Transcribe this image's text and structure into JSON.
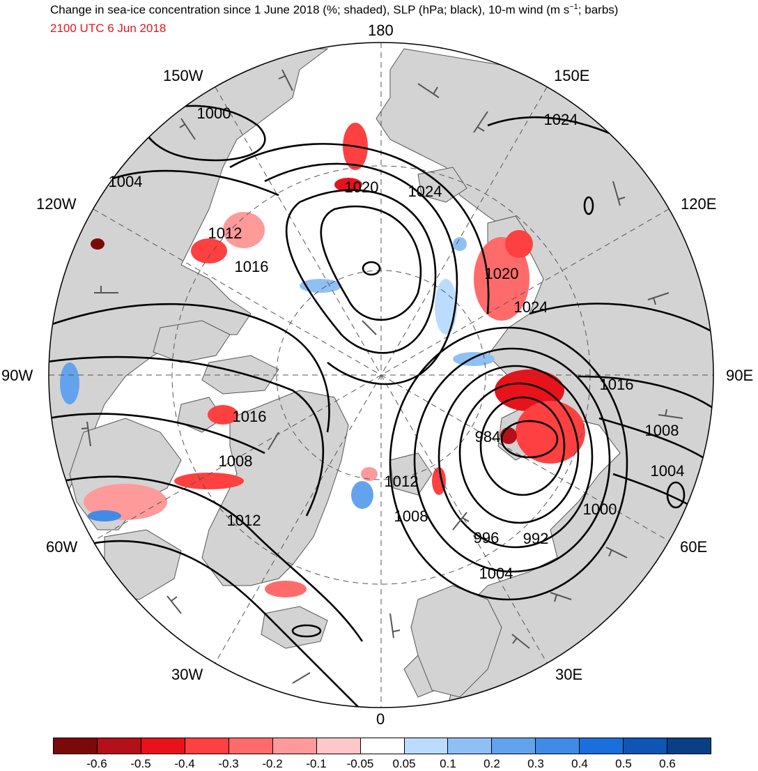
{
  "title": "Change in sea-ice concentration since 1 June 2018 (%; shaded), SLP (hPa; black), 10-m wind (m s",
  "title_superscript": "−1",
  "title_suffix": "; barbs)",
  "valid_time": "2100 UTC 6 Jun 2018",
  "longitude_labels": {
    "top": "180",
    "bottom": "0",
    "left": "90W",
    "right": "90E",
    "lon150w": "150W",
    "lon150e": "150E",
    "lon120w": "120W",
    "lon120e": "120E",
    "lon60w": "60W",
    "lon60e": "60E",
    "lon30w": "30W",
    "lon30e": "30E"
  },
  "slp_contour_labels": [
    {
      "id": "isobar-1000-nw",
      "text": "1000"
    },
    {
      "id": "isobar-1004-nw",
      "text": "1004"
    },
    {
      "id": "isobar-1012-nw",
      "text": "1012"
    },
    {
      "id": "isobar-1016-nw",
      "text": "1016"
    },
    {
      "id": "isobar-1020-c",
      "text": "1020"
    },
    {
      "id": "isobar-1024-c",
      "text": "1024"
    },
    {
      "id": "isobar-1024-ne",
      "text": "1024"
    },
    {
      "id": "isobar-1020-e",
      "text": "1020"
    },
    {
      "id": "isobar-1024-e",
      "text": "1024"
    },
    {
      "id": "isobar-1016-e",
      "text": "1016"
    },
    {
      "id": "isobar-1008-e",
      "text": "1008"
    },
    {
      "id": "isobar-1004-e",
      "text": "1004"
    },
    {
      "id": "isobar-984",
      "text": "984"
    },
    {
      "id": "isobar-1000-se",
      "text": "1000"
    },
    {
      "id": "isobar-996",
      "text": "996"
    },
    {
      "id": "isobar-992",
      "text": "992"
    },
    {
      "id": "isobar-1004-s",
      "text": "1004"
    },
    {
      "id": "isobar-1012-c",
      "text": "1012"
    },
    {
      "id": "isobar-1008-c",
      "text": "1008"
    },
    {
      "id": "isobar-1016-w",
      "text": "1016"
    },
    {
      "id": "isobar-1008-w",
      "text": "1008"
    },
    {
      "id": "isobar-1012-w",
      "text": "1012"
    }
  ],
  "colorbar": {
    "colors": [
      "#7a0a0a",
      "#b3101a",
      "#e8121b",
      "#ff4040",
      "#ff6b6b",
      "#ff9a9a",
      "#ffc8c8",
      "#ffffff",
      "#bcdcff",
      "#8fc0f5",
      "#63a3ee",
      "#3f8be6",
      "#1a6fdc",
      "#0f55b5",
      "#0a3f85"
    ],
    "tick_labels": [
      "-0.6",
      "-0.5",
      "-0.4",
      "-0.3",
      "-0.2",
      "-0.1",
      "-0.05",
      "0.05",
      "0.1",
      "0.2",
      "0.3",
      "0.4",
      "0.5",
      "0.6"
    ]
  },
  "colors": {
    "land": "#d3d3d3",
    "ocean": "#ffffff",
    "isobar": "#000000",
    "timestamp": "#e8121b"
  }
}
